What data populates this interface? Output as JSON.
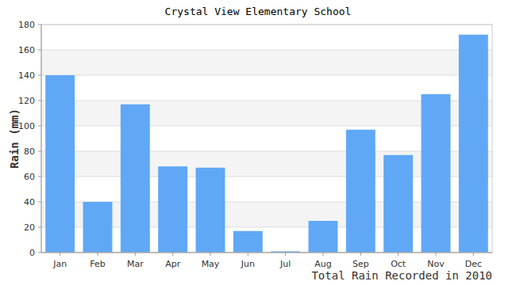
{
  "chart_data": {
    "type": "bar",
    "title": "Crystal View Elementary School",
    "x_label": "Total Rain Recorded in 2010",
    "y_label": "Rain (mm)",
    "categories": [
      "Jan",
      "Feb",
      "Mar",
      "Apr",
      "May",
      "Jun",
      "Jul",
      "Aug",
      "Sep",
      "Oct",
      "Nov",
      "Dec"
    ],
    "values": [
      140,
      40,
      117,
      68,
      67,
      17,
      1,
      25,
      97,
      77,
      125,
      172
    ],
    "color": "#60a8f6",
    "ylim": [
      0,
      180
    ],
    "yticks": [
      0,
      20,
      40,
      60,
      80,
      100,
      120,
      140,
      160,
      180
    ],
    "grid": true
  }
}
